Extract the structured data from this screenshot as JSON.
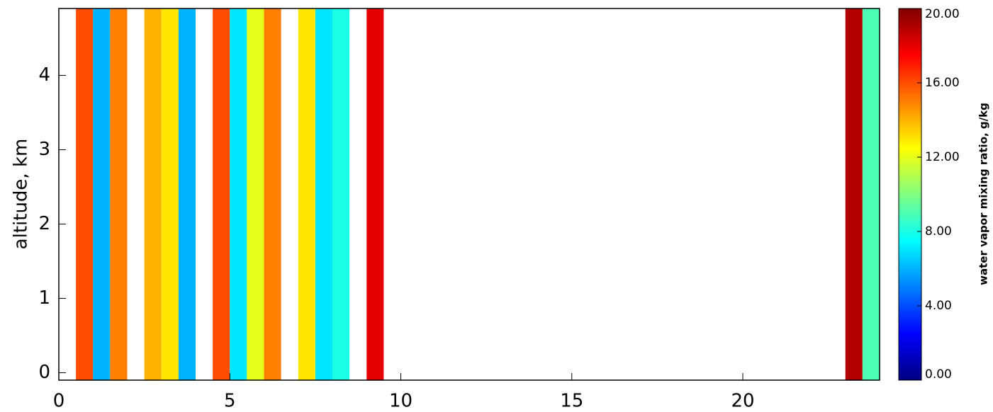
{
  "chart_data": {
    "type": "heatmap",
    "y_label": "altitude, km",
    "xlim": [
      0,
      24
    ],
    "ylim": [
      -0.1,
      4.9
    ],
    "xticks": [
      0,
      5,
      10,
      15,
      20
    ],
    "yticks": [
      0,
      1,
      2,
      3,
      4
    ],
    "column_width": 0.5,
    "x": [
      0,
      0.5,
      1,
      1.5,
      2,
      2.5,
      3,
      3.5,
      4,
      4.5,
      5,
      5.5,
      6,
      6.5,
      7,
      7.5,
      8,
      8.5,
      9,
      9.5,
      10,
      10.5,
      11,
      11.5,
      12,
      12.5,
      13,
      13.5,
      14,
      14.5,
      15,
      15.5,
      16,
      16.5,
      17,
      17.5,
      18,
      18.5,
      19,
      19.5,
      20,
      20.5,
      21,
      21.5,
      22,
      22.5,
      23,
      23.5
    ],
    "values": [
      null,
      16,
      6,
      15,
      null,
      14,
      13,
      6,
      null,
      16,
      7,
      12,
      15,
      null,
      13,
      7,
      8,
      null,
      18,
      null,
      null,
      null,
      null,
      null,
      null,
      null,
      null,
      null,
      null,
      null,
      null,
      null,
      null,
      null,
      null,
      null,
      null,
      null,
      null,
      null,
      null,
      null,
      null,
      null,
      null,
      null,
      19,
      9
    ],
    "colormap": [
      "#00007f",
      "#0000ff",
      "#0080ff",
      "#00ffff",
      "#80ff80",
      "#ffff00",
      "#ff8000",
      "#ff0000",
      "#7f0000"
    ],
    "colorbar": {
      "label": "water vapor mixing ratio, g/kg",
      "clim": [
        0,
        20
      ],
      "ticks": [
        {
          "value": 0,
          "label": "0.00"
        },
        {
          "value": 4,
          "label": "4.00"
        },
        {
          "value": 8,
          "label": "8.00"
        },
        {
          "value": 12,
          "label": "12.00"
        },
        {
          "value": 16,
          "label": "16.00"
        },
        {
          "value": 20,
          "label": "20.00"
        }
      ]
    }
  }
}
